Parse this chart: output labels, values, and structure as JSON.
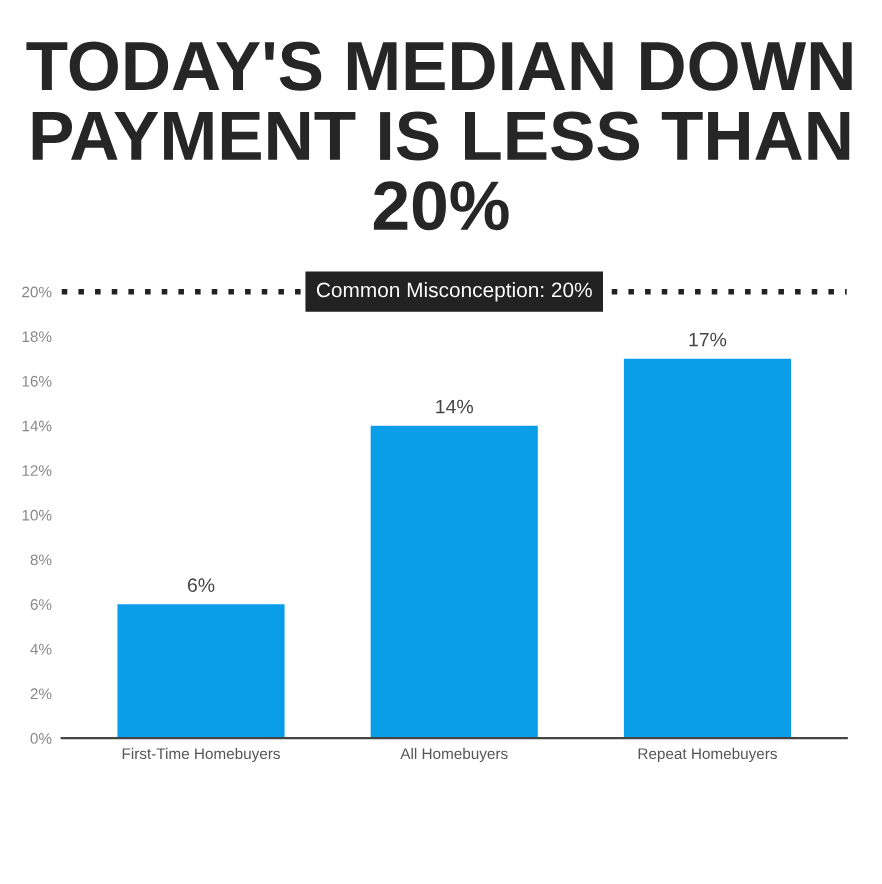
{
  "chart_data": {
    "type": "bar",
    "title": "TODAY'S MEDIAN DOWN PAYMENT IS LESS THAN 20%",
    "categories": [
      "First-Time Homebuyers",
      "All Homebuyers",
      "Repeat Homebuyers"
    ],
    "values": [
      6,
      14,
      17
    ],
    "color": "#0a9ee8",
    "value_labels": [
      "6%",
      "14%",
      "17%"
    ],
    "ylim": [
      0,
      20
    ],
    "yticks": [
      {
        "value": 0,
        "label": "0%"
      },
      {
        "value": 2,
        "label": "2%"
      },
      {
        "value": 4,
        "label": "4%"
      },
      {
        "value": 6,
        "label": "6%"
      },
      {
        "value": 8,
        "label": "8%"
      },
      {
        "value": 10,
        "label": "10%"
      },
      {
        "value": 12,
        "label": "12%"
      },
      {
        "value": 14,
        "label": "14%"
      },
      {
        "value": 16,
        "label": "16%"
      },
      {
        "value": 18,
        "label": "18%"
      },
      {
        "value": 20,
        "label": "20%"
      }
    ],
    "ref_lines": [
      {
        "axis": "y",
        "value": 20,
        "label": "Common Misconception: 20%",
        "color": "#222222",
        "line_style": "dotted"
      }
    ],
    "grid": false,
    "legend": false
  }
}
